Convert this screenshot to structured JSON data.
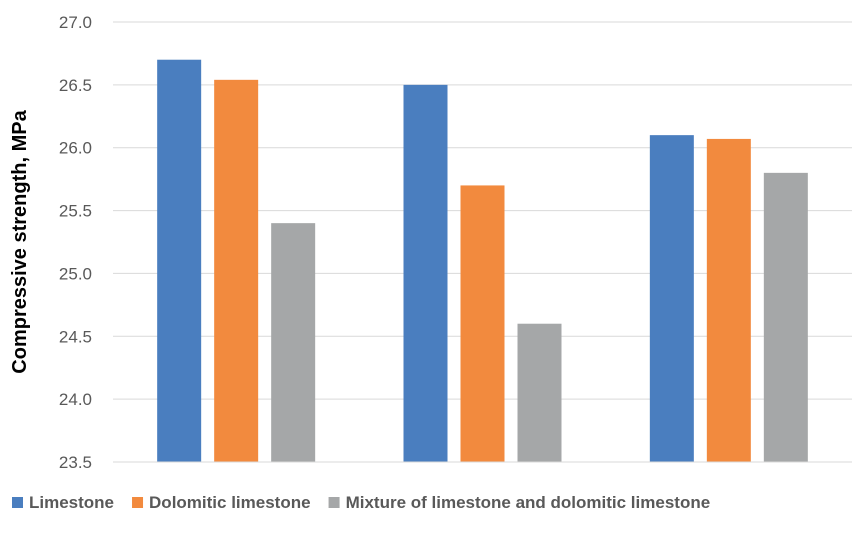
{
  "chart_data": {
    "type": "bar",
    "title": "",
    "xlabel": "",
    "ylabel": "Compressive strength, MPa",
    "ylim": [
      23.5,
      27.0
    ],
    "ytick_step": 0.5,
    "yticks": [
      "23.5",
      "24.0",
      "24.5",
      "25.0",
      "25.5",
      "26.0",
      "26.5",
      "27.0"
    ],
    "grid": true,
    "legend_position": "bottom",
    "categories": [
      "",
      "",
      ""
    ],
    "series": [
      {
        "name": "Limestone",
        "color": "#4A7EBF",
        "values": [
          26.7,
          26.5,
          26.1
        ]
      },
      {
        "name": "Dolomitic limestone",
        "color": "#F28A3E",
        "values": [
          26.54,
          25.7,
          26.07
        ]
      },
      {
        "name": "Mixture of limestone and dolomitic limestone",
        "color": "#A5A7A8",
        "values": [
          25.4,
          24.6,
          25.8
        ]
      }
    ]
  }
}
